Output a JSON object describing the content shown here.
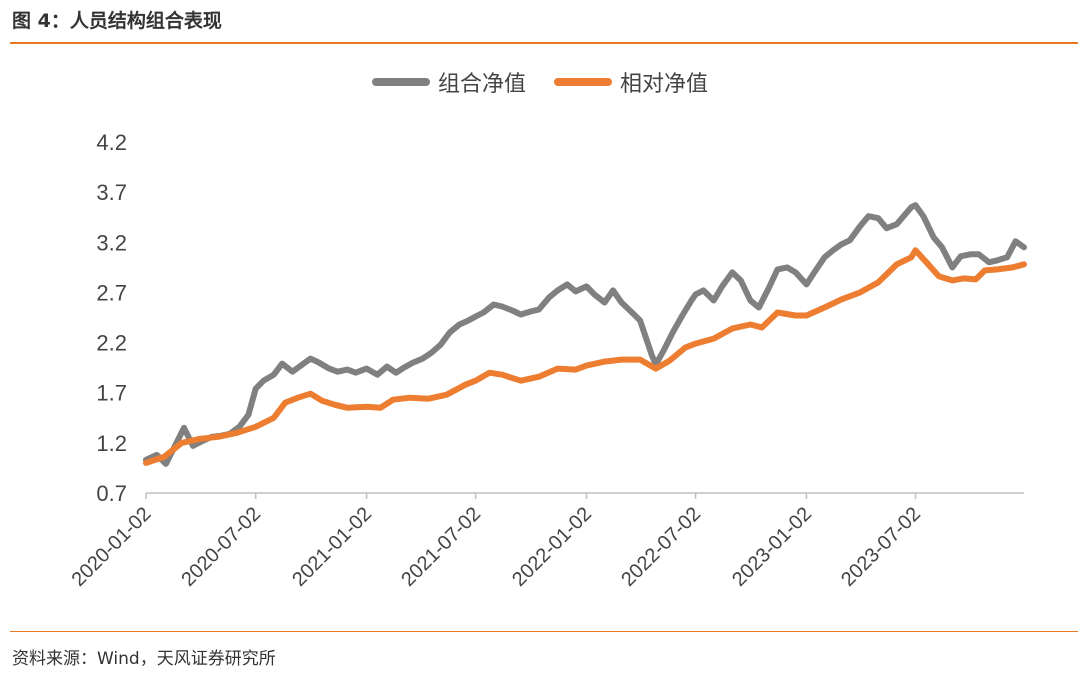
{
  "figure": {
    "title": "图 4：人员结构组合表现",
    "source": "资料来源：Wind，天风证券研究所"
  },
  "colors": {
    "accent": "#E87722",
    "portfolio": "#808080",
    "relative": "#ED7D31",
    "axis": "#BFBFBF"
  },
  "chart_data": {
    "type": "line",
    "title": "",
    "xlabel": "",
    "ylabel": "",
    "grid": false,
    "legend_position": "top-center",
    "ylim": [
      0.7,
      4.2
    ],
    "yticks": [
      "0.7",
      "1.2",
      "1.7",
      "2.2",
      "2.7",
      "3.2",
      "3.7",
      "4.2"
    ],
    "xlim": [
      "2020-01-02",
      "2023-12-29"
    ],
    "xticks": [
      "2020-01-02",
      "2020-07-02",
      "2021-01-02",
      "2021-07-02",
      "2022-01-02",
      "2022-07-02",
      "2023-01-02",
      "2023-07-02"
    ],
    "series": [
      {
        "name": "组合净值",
        "color": "#808080",
        "points": [
          [
            "2020-01-02",
            1.03
          ],
          [
            "2020-01-20",
            1.08
          ],
          [
            "2020-02-04",
            0.99
          ],
          [
            "2020-02-20",
            1.18
          ],
          [
            "2020-03-05",
            1.35
          ],
          [
            "2020-03-20",
            1.17
          ],
          [
            "2020-04-05",
            1.22
          ],
          [
            "2020-04-20",
            1.26
          ],
          [
            "2020-05-05",
            1.27
          ],
          [
            "2020-05-20",
            1.29
          ],
          [
            "2020-06-05",
            1.36
          ],
          [
            "2020-06-20",
            1.48
          ],
          [
            "2020-07-02",
            1.74
          ],
          [
            "2020-07-15",
            1.82
          ],
          [
            "2020-08-01",
            1.88
          ],
          [
            "2020-08-15",
            1.99
          ],
          [
            "2020-09-01",
            1.91
          ],
          [
            "2020-09-15",
            1.97
          ],
          [
            "2020-10-01",
            2.04
          ],
          [
            "2020-10-15",
            2.0
          ],
          [
            "2020-11-01",
            1.94
          ],
          [
            "2020-11-15",
            1.91
          ],
          [
            "2020-12-01",
            1.93
          ],
          [
            "2020-12-15",
            1.9
          ],
          [
            "2021-01-02",
            1.94
          ],
          [
            "2021-01-20",
            1.88
          ],
          [
            "2021-02-05",
            1.96
          ],
          [
            "2021-02-20",
            1.9
          ],
          [
            "2021-03-05",
            1.95
          ],
          [
            "2021-03-20",
            2.0
          ],
          [
            "2021-04-05",
            2.04
          ],
          [
            "2021-04-20",
            2.1
          ],
          [
            "2021-05-05",
            2.18
          ],
          [
            "2021-05-20",
            2.3
          ],
          [
            "2021-06-05",
            2.38
          ],
          [
            "2021-06-20",
            2.42
          ],
          [
            "2021-07-02",
            2.46
          ],
          [
            "2021-07-15",
            2.5
          ],
          [
            "2021-08-01",
            2.58
          ],
          [
            "2021-08-15",
            2.56
          ],
          [
            "2021-09-01",
            2.52
          ],
          [
            "2021-09-15",
            2.48
          ],
          [
            "2021-10-01",
            2.51
          ],
          [
            "2021-10-15",
            2.53
          ],
          [
            "2021-11-01",
            2.65
          ],
          [
            "2021-11-15",
            2.72
          ],
          [
            "2021-12-01",
            2.78
          ],
          [
            "2021-12-15",
            2.71
          ],
          [
            "2022-01-02",
            2.76
          ],
          [
            "2022-01-15",
            2.68
          ],
          [
            "2022-02-01",
            2.6
          ],
          [
            "2022-02-15",
            2.72
          ],
          [
            "2022-03-01",
            2.6
          ],
          [
            "2022-03-15",
            2.52
          ],
          [
            "2022-04-01",
            2.42
          ],
          [
            "2022-04-20",
            2.08
          ],
          [
            "2022-04-27",
            1.98
          ],
          [
            "2022-05-10",
            2.12
          ],
          [
            "2022-05-25",
            2.3
          ],
          [
            "2022-06-10",
            2.47
          ],
          [
            "2022-06-25",
            2.62
          ],
          [
            "2022-07-02",
            2.68
          ],
          [
            "2022-07-15",
            2.72
          ],
          [
            "2022-08-01",
            2.62
          ],
          [
            "2022-08-15",
            2.76
          ],
          [
            "2022-09-01",
            2.9
          ],
          [
            "2022-09-15",
            2.82
          ],
          [
            "2022-10-01",
            2.62
          ],
          [
            "2022-10-15",
            2.55
          ],
          [
            "2022-11-01",
            2.75
          ],
          [
            "2022-11-15",
            2.93
          ],
          [
            "2022-12-01",
            2.95
          ],
          [
            "2022-12-15",
            2.9
          ],
          [
            "2023-01-02",
            2.78
          ],
          [
            "2023-01-15",
            2.9
          ],
          [
            "2023-02-01",
            3.05
          ],
          [
            "2023-02-15",
            3.12
          ],
          [
            "2023-03-01",
            3.18
          ],
          [
            "2023-03-15",
            3.22
          ],
          [
            "2023-04-01",
            3.36
          ],
          [
            "2023-04-15",
            3.46
          ],
          [
            "2023-05-01",
            3.44
          ],
          [
            "2023-05-15",
            3.34
          ],
          [
            "2023-06-01",
            3.38
          ],
          [
            "2023-06-15",
            3.48
          ],
          [
            "2023-06-25",
            3.55
          ],
          [
            "2023-07-02",
            3.57
          ],
          [
            "2023-07-15",
            3.46
          ],
          [
            "2023-08-01",
            3.25
          ],
          [
            "2023-08-15",
            3.15
          ],
          [
            "2023-09-01",
            2.95
          ],
          [
            "2023-09-15",
            3.06
          ],
          [
            "2023-10-01",
            3.08
          ],
          [
            "2023-10-15",
            3.08
          ],
          [
            "2023-11-01",
            3.0
          ],
          [
            "2023-11-15",
            3.02
          ],
          [
            "2023-12-01",
            3.05
          ],
          [
            "2023-12-15",
            3.21
          ],
          [
            "2023-12-29",
            3.15
          ]
        ]
      },
      {
        "name": "相对净值",
        "color": "#ED7D31",
        "points": [
          [
            "2020-01-02",
            1.0
          ],
          [
            "2020-02-01",
            1.06
          ],
          [
            "2020-03-01",
            1.2
          ],
          [
            "2020-04-01",
            1.24
          ],
          [
            "2020-05-01",
            1.26
          ],
          [
            "2020-06-01",
            1.3
          ],
          [
            "2020-07-02",
            1.36
          ],
          [
            "2020-08-01",
            1.45
          ],
          [
            "2020-08-20",
            1.6
          ],
          [
            "2020-09-10",
            1.65
          ],
          [
            "2020-10-01",
            1.69
          ],
          [
            "2020-10-20",
            1.62
          ],
          [
            "2020-11-10",
            1.58
          ],
          [
            "2020-12-01",
            1.55
          ],
          [
            "2021-01-02",
            1.56
          ],
          [
            "2021-01-25",
            1.55
          ],
          [
            "2021-02-15",
            1.63
          ],
          [
            "2021-03-15",
            1.65
          ],
          [
            "2021-04-15",
            1.64
          ],
          [
            "2021-05-15",
            1.68
          ],
          [
            "2021-06-15",
            1.78
          ],
          [
            "2021-07-02",
            1.82
          ],
          [
            "2021-07-25",
            1.9
          ],
          [
            "2021-08-15",
            1.88
          ],
          [
            "2021-09-15",
            1.82
          ],
          [
            "2021-10-15",
            1.86
          ],
          [
            "2021-11-15",
            1.94
          ],
          [
            "2021-12-15",
            1.93
          ],
          [
            "2022-01-02",
            1.97
          ],
          [
            "2022-02-01",
            2.01
          ],
          [
            "2022-03-01",
            2.03
          ],
          [
            "2022-04-01",
            2.03
          ],
          [
            "2022-04-27",
            1.94
          ],
          [
            "2022-05-20",
            2.02
          ],
          [
            "2022-06-15",
            2.15
          ],
          [
            "2022-07-02",
            2.19
          ],
          [
            "2022-08-01",
            2.24
          ],
          [
            "2022-09-01",
            2.34
          ],
          [
            "2022-10-01",
            2.38
          ],
          [
            "2022-10-20",
            2.35
          ],
          [
            "2022-11-15",
            2.5
          ],
          [
            "2022-12-15",
            2.47
          ],
          [
            "2023-01-02",
            2.47
          ],
          [
            "2023-02-01",
            2.55
          ],
          [
            "2023-03-01",
            2.63
          ],
          [
            "2023-04-01",
            2.7
          ],
          [
            "2023-05-01",
            2.8
          ],
          [
            "2023-06-01",
            2.98
          ],
          [
            "2023-06-25",
            3.05
          ],
          [
            "2023-07-02",
            3.12
          ],
          [
            "2023-07-20",
            3.0
          ],
          [
            "2023-08-10",
            2.86
          ],
          [
            "2023-09-01",
            2.82
          ],
          [
            "2023-09-20",
            2.84
          ],
          [
            "2023-10-10",
            2.83
          ],
          [
            "2023-10-25",
            2.92
          ],
          [
            "2023-11-15",
            2.93
          ],
          [
            "2023-12-10",
            2.95
          ],
          [
            "2023-12-29",
            2.98
          ]
        ]
      }
    ]
  }
}
